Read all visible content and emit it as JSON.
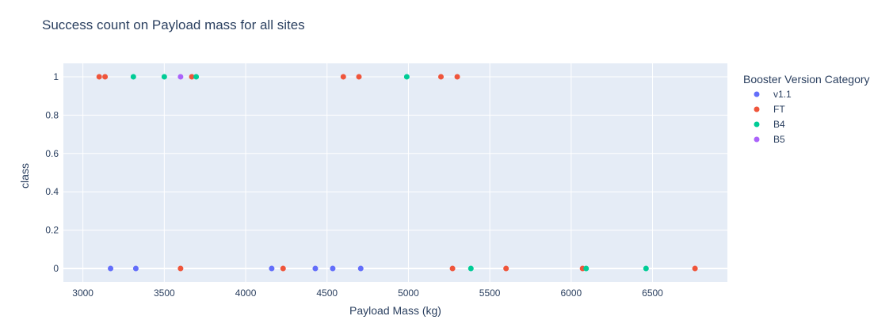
{
  "chart_data": {
    "type": "scatter",
    "title": "Success count on Payload mass for all sites",
    "xlabel": "Payload Mass (kg)",
    "ylabel": "class",
    "xlim": [
      2880,
      6960
    ],
    "ylim": [
      -0.07,
      1.07
    ],
    "x_ticks": [
      3000,
      3500,
      4000,
      4500,
      5000,
      5500,
      6000,
      6500
    ],
    "y_ticks": [
      0,
      0.2,
      0.4,
      0.6,
      0.8,
      1
    ],
    "y_tick_labels": [
      "0",
      "0.2",
      "0.4",
      "0.6",
      "0.8",
      "1"
    ],
    "grid": true,
    "legend": {
      "title": "Booster Version Category",
      "placement": "right"
    },
    "series": [
      {
        "name": "v1.1",
        "color": "#636efa",
        "points": [
          [
            3170,
            0
          ],
          [
            3325,
            0
          ],
          [
            4160,
            0
          ],
          [
            4428,
            0
          ],
          [
            4535,
            0
          ],
          [
            4707,
            0
          ]
        ]
      },
      {
        "name": "FT",
        "color": "#ef553b",
        "points": [
          [
            3100,
            1
          ],
          [
            3136,
            1
          ],
          [
            3669,
            1
          ],
          [
            4600,
            1
          ],
          [
            4696,
            1
          ],
          [
            5200,
            1
          ],
          [
            5300,
            1
          ],
          [
            3600,
            0
          ],
          [
            4230,
            0
          ],
          [
            5271,
            0
          ],
          [
            5600,
            0
          ],
          [
            6070,
            0
          ],
          [
            6761,
            0
          ]
        ]
      },
      {
        "name": "B4",
        "color": "#00cc96",
        "points": [
          [
            3310,
            1
          ],
          [
            3500,
            1
          ],
          [
            3696,
            1
          ],
          [
            4990,
            1
          ],
          [
            5384,
            0
          ],
          [
            6092,
            0
          ],
          [
            6460,
            0
          ]
        ]
      },
      {
        "name": "B5",
        "color": "#ab63fa",
        "points": [
          [
            3600,
            1
          ]
        ]
      }
    ]
  }
}
